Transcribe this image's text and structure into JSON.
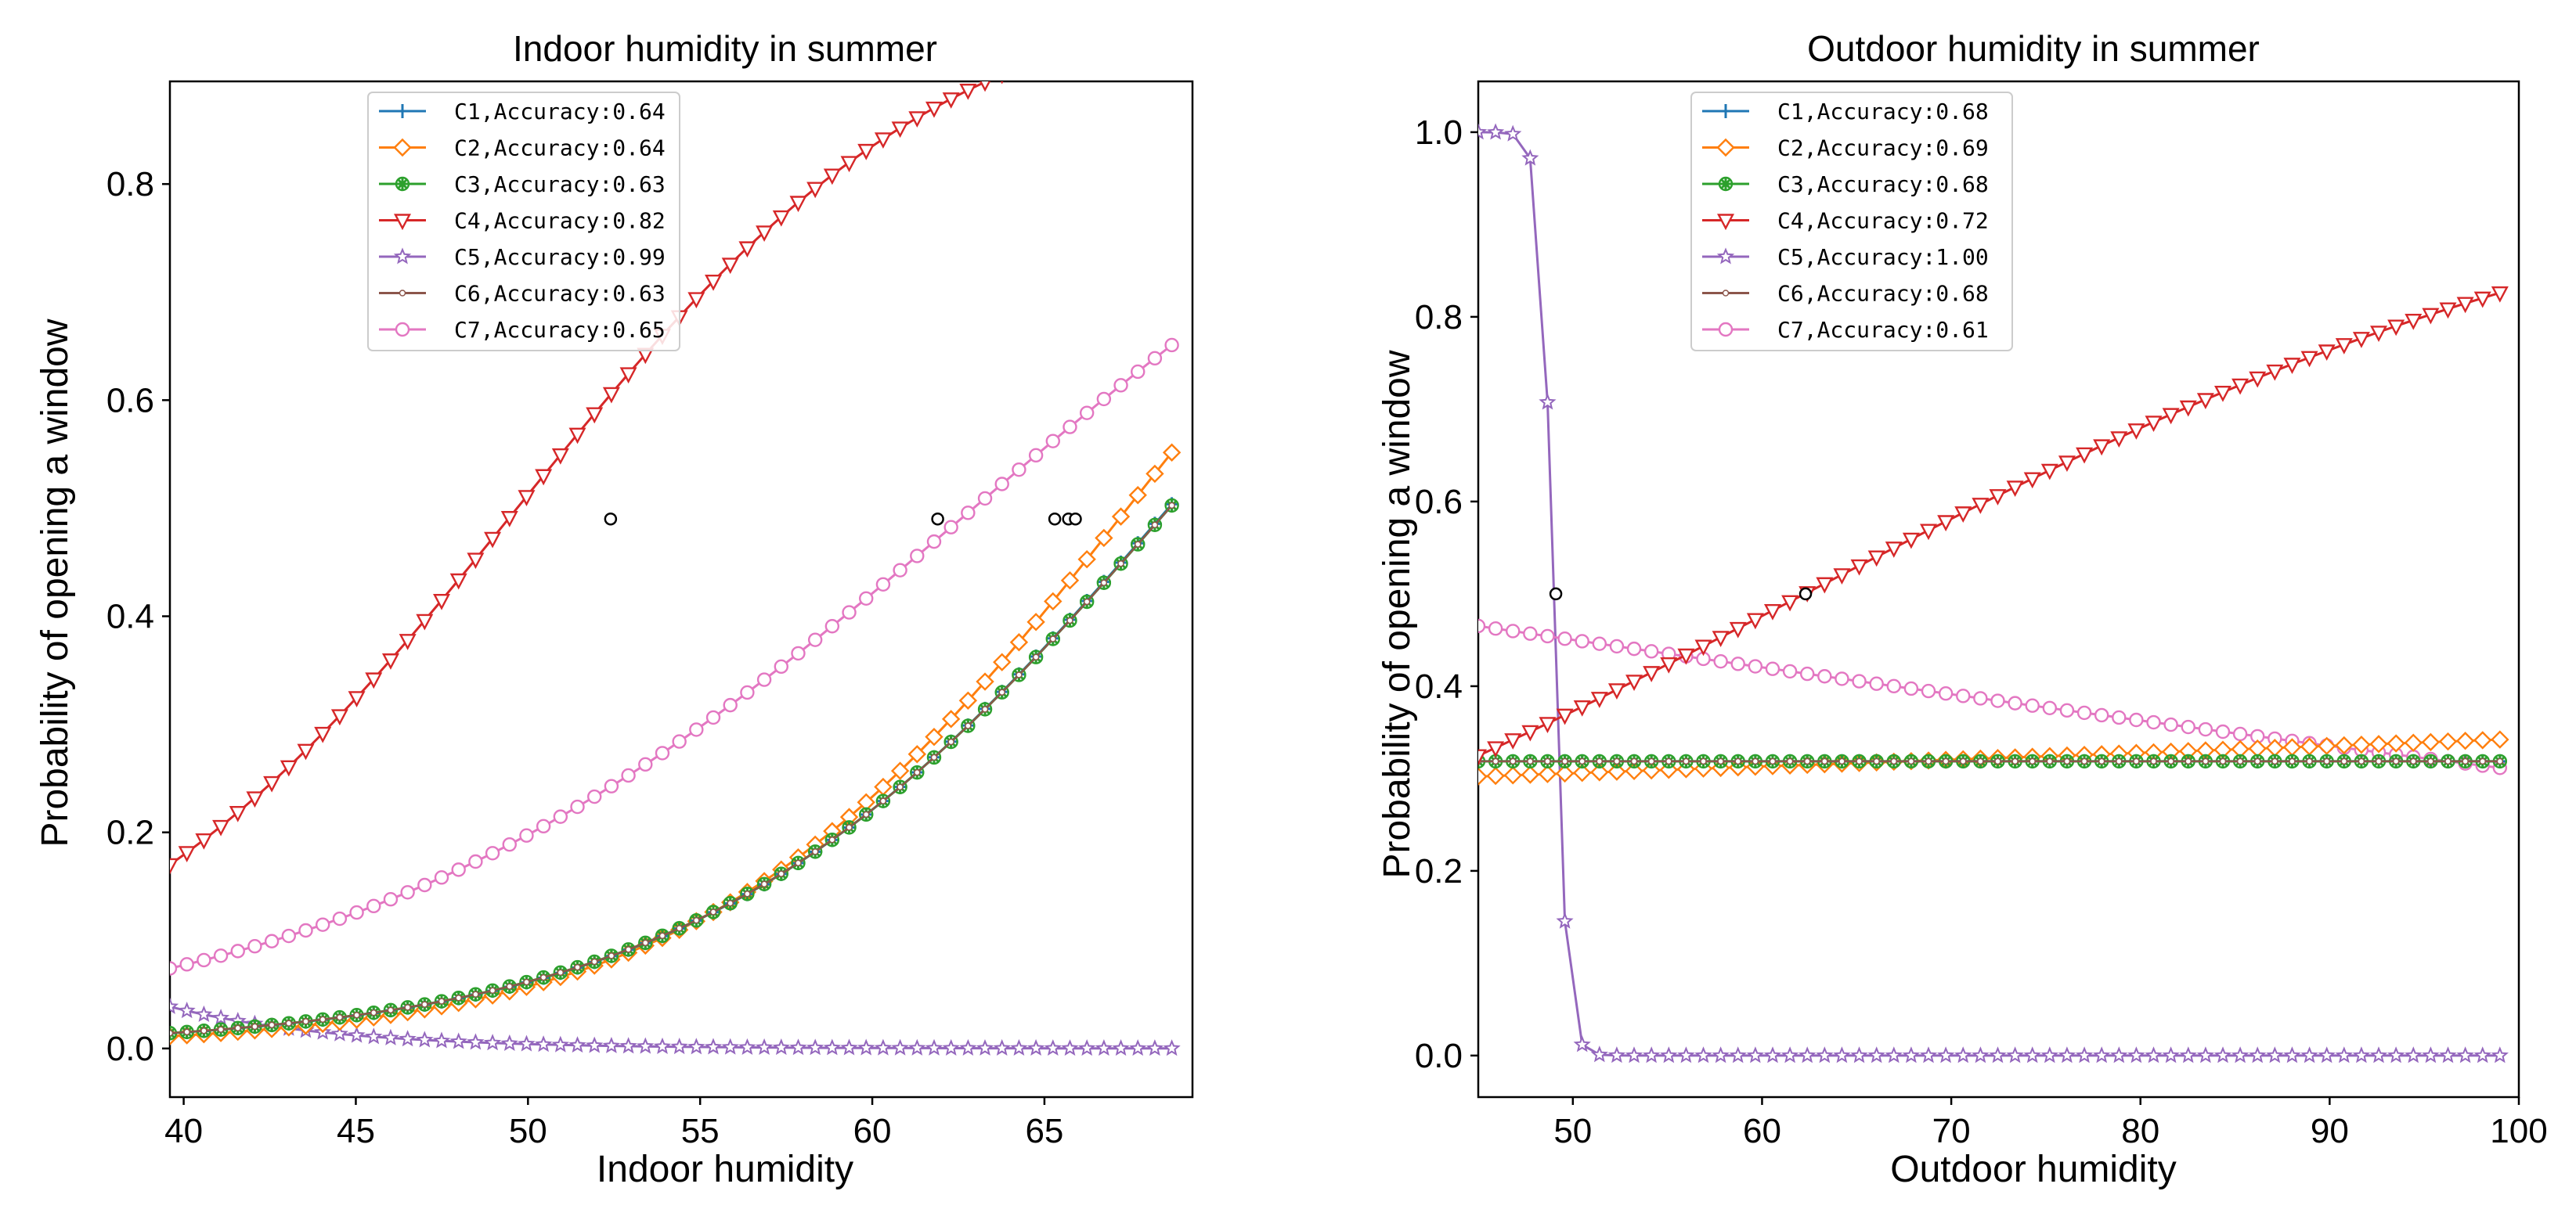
{
  "chart_data": [
    {
      "type": "line",
      "title": "Indoor humidity in summer",
      "xlabel": "Indoor humidity",
      "ylabel": "Probability of opening a window",
      "xlim": [
        39.6,
        69.3
      ],
      "ylim": [
        -0.045,
        0.895
      ],
      "xticks": [
        40,
        45,
        50,
        55,
        60,
        65
      ],
      "xtick_labels": [
        "40",
        "45",
        "50",
        "55",
        "60",
        "65"
      ],
      "yticks": [
        0.0,
        0.2,
        0.4,
        0.6,
        0.8
      ],
      "ytick_labels": [
        "0.0",
        "0.2",
        "0.4",
        "0.6",
        "0.8"
      ],
      "x_range": [
        39.6,
        68.7
      ],
      "num_points": 60,
      "legend_position": "top-left",
      "series": [
        {
          "name": "C1,Accuracy:0.64",
          "color": "#1f77b4",
          "marker": "plus",
          "b0": -10.05,
          "b1": 0.1465
        },
        {
          "name": "C2,Accuracy:0.64",
          "color": "#ff7f0e",
          "marker": "diamond",
          "b0": -10.84,
          "b1": 0.1608
        },
        {
          "name": "C3,Accuracy:0.63",
          "color": "#2ca02c",
          "marker": "x",
          "b0": -10.02,
          "b1": 0.146
        },
        {
          "name": "C4,Accuracy:0.82",
          "color": "#d62728",
          "marker": "triangle-down",
          "b0": -7.81,
          "b1": 0.1572
        },
        {
          "name": "C5,Accuracy:0.99",
          "color": "#9467bd",
          "marker": "star",
          "b0": 5.5,
          "b1": -0.22
        },
        {
          "name": "C6,Accuracy:0.63",
          "color": "#8c564b",
          "marker": "dot",
          "b0": -10.02,
          "b1": 0.146
        },
        {
          "name": "C7,Accuracy:0.65",
          "color": "#e377c2",
          "marker": "circle",
          "b0": -6.81,
          "b1": 0.1082
        }
      ],
      "threshold_points": [
        {
          "x": 52.4,
          "y": 0.49
        },
        {
          "x": 61.9,
          "y": 0.49
        },
        {
          "x": 65.3,
          "y": 0.49
        },
        {
          "x": 65.7,
          "y": 0.49
        },
        {
          "x": 65.9,
          "y": 0.49
        }
      ]
    },
    {
      "type": "line",
      "title": "Outdoor humidity in summer",
      "xlabel": "Outdoor humidity",
      "ylabel": "Probability of opening a window",
      "xlim": [
        45.0,
        100.0
      ],
      "ylim": [
        -0.045,
        1.055
      ],
      "xticks": [
        50,
        60,
        70,
        80,
        90,
        100
      ],
      "xtick_labels": [
        "50",
        "60",
        "70",
        "80",
        "90",
        "100"
      ],
      "yticks": [
        0.0,
        0.2,
        0.4,
        0.6,
        0.8,
        1.0
      ],
      "ytick_labels": [
        "0.0",
        "0.2",
        "0.4",
        "0.6",
        "0.8",
        "1.0"
      ],
      "x_range": [
        45.0,
        99.0
      ],
      "num_points": 60,
      "legend_position": "top-left",
      "series": [
        {
          "name": "C1,Accuracy:0.68",
          "color": "#1f77b4",
          "marker": "plus",
          "b0": -0.76,
          "b1": 0.0
        },
        {
          "name": "C2,Accuracy:0.69",
          "color": "#ff7f0e",
          "marker": "diamond",
          "b0": -0.99,
          "b1": 0.0034
        },
        {
          "name": "C3,Accuracy:0.68",
          "color": "#2ca02c",
          "marker": "x",
          "b0": -0.76,
          "b1": 0.0
        },
        {
          "name": "C4,Accuracy:0.72",
          "color": "#d62728",
          "marker": "triangle-down",
          "b0": -2.64,
          "b1": 0.0424
        },
        {
          "name": "C5,Accuracy:1.00",
          "color": "#9467bd",
          "marker": "star",
          "b0": 142.0,
          "b1": -2.9
        },
        {
          "name": "C6,Accuracy:0.68",
          "color": "#8c564b",
          "marker": "dot",
          "b0": -0.76,
          "b1": 0.0
        },
        {
          "name": "C7,Accuracy:0.61",
          "color": "#e377c2",
          "marker": "circle",
          "b0": 0.405,
          "b1": -0.0121
        }
      ],
      "threshold_points": [
        {
          "x": 49.1,
          "y": 0.5
        },
        {
          "x": 62.3,
          "y": 0.5
        }
      ]
    }
  ]
}
